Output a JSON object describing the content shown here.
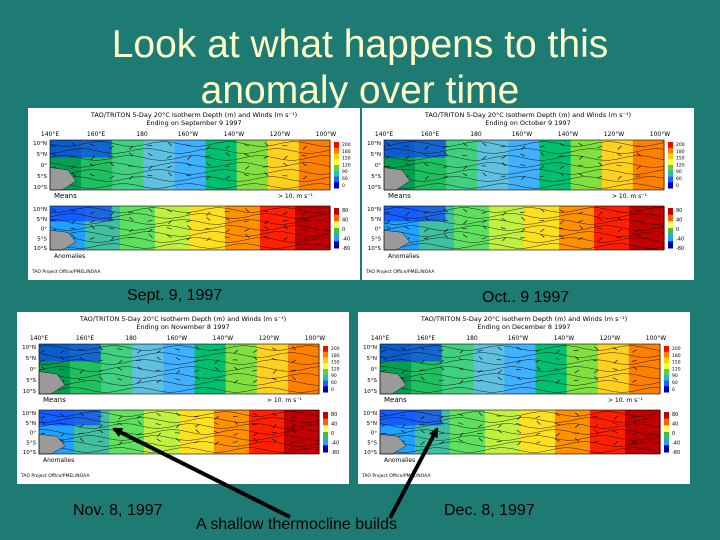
{
  "slide": {
    "title_line1": "Look at what happens to this",
    "title_line2": "anomaly over time"
  },
  "panels": [
    {
      "header": "TAO/TRITON 5-Day 20°C Isotherm Depth (m) and Winds (m s⁻¹)",
      "ending": "Ending on September 9 1997",
      "caption": "Sept. 9, 1997"
    },
    {
      "header": "TAO/TRITON 5-Day 20°C Isotherm Depth (m) and Winds (m s⁻¹)",
      "ending": "Ending on October 9 1997",
      "caption": "Oct.. 9 1997"
    },
    {
      "header": "TAO/TRITON 5-Day 20°C Isotherm Depth (m) and Winds (m s⁻¹)",
      "ending": "Ending on November 8 1997",
      "caption": "Nov. 8, 1997"
    },
    {
      "header": "TAO/TRITON 5-Day 20°C Isotherm Depth (m) and Winds (m s⁻¹)",
      "ending": "Ending on December 8 1997",
      "caption": "Dec. 8, 1997"
    }
  ],
  "map": {
    "lon_labels": [
      "140°E",
      "160°E",
      "180",
      "160°W",
      "140°W",
      "120°W",
      "100°W"
    ],
    "lat_labels": [
      "10°N",
      "5°N",
      "0°",
      "5°S",
      "10°S"
    ],
    "means_label": "Means",
    "anomalies_label": "Anomalies",
    "wind_scale": "> 10. m s⁻¹",
    "means_scale": [
      "200",
      "180",
      "150",
      "120",
      "90",
      "60",
      "0"
    ],
    "anom_scale": [
      "80",
      "40",
      "0",
      "-40",
      "-80"
    ],
    "credit": "TAO Project Office/PMEL/NOAA"
  },
  "annotation": {
    "text": "A shallow thermocline builds"
  },
  "colors": {
    "background": "#1e7b74",
    "title": "#ffffcc",
    "arrow": "#000000"
  }
}
